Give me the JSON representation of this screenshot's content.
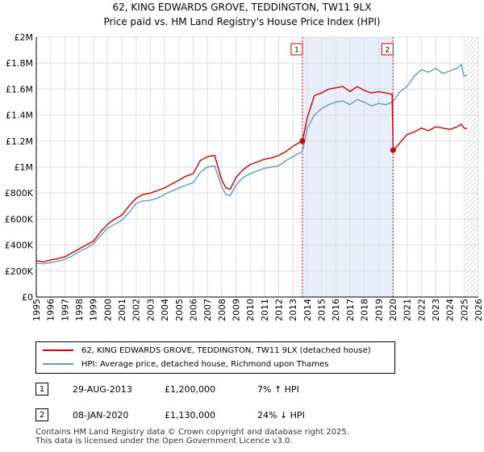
{
  "chart_data": {
    "type": "line",
    "title": "62, KING EDWARDS GROVE, TEDDINGTON, TW11 9LX",
    "subtitle": "Price paid vs. HM Land Registry's House Price Index (HPI)",
    "xlabel": "",
    "ylabel": "",
    "xlim": [
      1995,
      2026
    ],
    "ylim": [
      0,
      2000000
    ],
    "ytick_labels": [
      "£0",
      "£200K",
      "£400K",
      "£600K",
      "£800K",
      "£1M",
      "£1.2M",
      "£1.4M",
      "£1.6M",
      "£1.8M",
      "£2M"
    ],
    "xtick_labels": [
      "1995",
      "1996",
      "1997",
      "1998",
      "1999",
      "2000",
      "2001",
      "2002",
      "2003",
      "2004",
      "2005",
      "2006",
      "2007",
      "2008",
      "2009",
      "2010",
      "2011",
      "2012",
      "2013",
      "2014",
      "2015",
      "2016",
      "2017",
      "2018",
      "2019",
      "2020",
      "2021",
      "2022",
      "2023",
      "2024",
      "2025",
      "2026"
    ],
    "grid": true,
    "series": [
      {
        "name": "62, KING EDWARDS GROVE, TEDDINGTON, TW11 9LX (detached house)",
        "color": "#cc0000",
        "x": [
          1995.0,
          1995.5,
          1996.0,
          1996.5,
          1997.0,
          1997.5,
          1998.0,
          1998.5,
          1999.0,
          1999.5,
          2000.0,
          2000.5,
          2001.0,
          2001.5,
          2002.0,
          2002.5,
          2003.0,
          2003.5,
          2004.0,
          2004.5,
          2005.0,
          2005.5,
          2006.0,
          2006.5,
          2007.0,
          2007.5,
          2008.0,
          2008.3,
          2008.6,
          2009.0,
          2009.5,
          2010.0,
          2010.5,
          2011.0,
          2011.5,
          2012.0,
          2012.5,
          2013.0,
          2013.3,
          2013.66,
          2014.0,
          2014.5,
          2015.0,
          2015.5,
          2016.0,
          2016.5,
          2017.0,
          2017.5,
          2018.0,
          2018.5,
          2019.0,
          2019.5,
          2019.95,
          2020.02,
          2020.3,
          2020.6,
          2021.0,
          2021.5,
          2022.0,
          2022.5,
          2023.0,
          2023.5,
          2024.0,
          2024.5,
          2024.8,
          2025.0,
          2025.2
        ],
        "values": [
          280000,
          270000,
          285000,
          295000,
          310000,
          340000,
          370000,
          400000,
          430000,
          500000,
          560000,
          600000,
          630000,
          700000,
          760000,
          790000,
          800000,
          820000,
          840000,
          870000,
          900000,
          930000,
          950000,
          1050000,
          1080000,
          1090000,
          900000,
          840000,
          830000,
          920000,
          980000,
          1020000,
          1040000,
          1060000,
          1070000,
          1090000,
          1120000,
          1160000,
          1180000,
          1200000,
          1380000,
          1550000,
          1570000,
          1600000,
          1610000,
          1620000,
          1580000,
          1620000,
          1590000,
          1570000,
          1580000,
          1570000,
          1560000,
          1130000,
          1160000,
          1200000,
          1250000,
          1270000,
          1300000,
          1280000,
          1310000,
          1300000,
          1290000,
          1310000,
          1330000,
          1300000,
          1295000
        ]
      },
      {
        "name": "HPI: Average price, detached house, Richmond upon Thames",
        "color": "#6699cc",
        "x": [
          1995.0,
          1995.5,
          1996.0,
          1996.5,
          1997.0,
          1997.5,
          1998.0,
          1998.5,
          1999.0,
          1999.5,
          2000.0,
          2000.5,
          2001.0,
          2001.5,
          2002.0,
          2002.5,
          2003.0,
          2003.5,
          2004.0,
          2004.5,
          2005.0,
          2005.5,
          2006.0,
          2006.5,
          2007.0,
          2007.5,
          2008.0,
          2008.3,
          2008.6,
          2009.0,
          2009.5,
          2010.0,
          2010.5,
          2011.0,
          2011.5,
          2012.0,
          2012.5,
          2013.0,
          2013.3,
          2013.66,
          2014.0,
          2014.5,
          2015.0,
          2015.5,
          2016.0,
          2016.5,
          2017.0,
          2017.5,
          2018.0,
          2018.5,
          2019.0,
          2019.5,
          2020.0,
          2020.5,
          2021.0,
          2021.5,
          2022.0,
          2022.5,
          2023.0,
          2023.5,
          2024.0,
          2024.5,
          2024.8,
          2025.0,
          2025.2
        ],
        "values": [
          260000,
          255000,
          265000,
          275000,
          290000,
          315000,
          350000,
          375000,
          410000,
          470000,
          530000,
          560000,
          590000,
          650000,
          720000,
          740000,
          745000,
          760000,
          790000,
          815000,
          840000,
          860000,
          880000,
          960000,
          1000000,
          1010000,
          850000,
          790000,
          780000,
          860000,
          920000,
          950000,
          970000,
          990000,
          1000000,
          1010000,
          1050000,
          1080000,
          1100000,
          1120000,
          1300000,
          1400000,
          1450000,
          1480000,
          1500000,
          1510000,
          1480000,
          1520000,
          1500000,
          1470000,
          1490000,
          1480000,
          1500000,
          1580000,
          1620000,
          1700000,
          1750000,
          1730000,
          1760000,
          1720000,
          1740000,
          1760000,
          1790000,
          1700000,
          1710000
        ]
      }
    ],
    "annotations": [
      {
        "label": "1",
        "x": 2013.66,
        "y": 1200000,
        "date": "29-AUG-2013"
      },
      {
        "label": "2",
        "x": 2020.02,
        "y": 1130000,
        "date": "08-JAN-2020"
      }
    ],
    "shaded_span": [
      2013.66,
      2020.02
    ]
  },
  "legend": {
    "property_label": "62, KING EDWARDS GROVE, TEDDINGTON, TW11 9LX (detached house)",
    "hpi_label": "HPI: Average price, detached house, Richmond upon Thames"
  },
  "transactions": [
    {
      "num": "1",
      "date": "29-AUG-2013",
      "price": "£1,200,000",
      "hpi": "7% ↑ HPI"
    },
    {
      "num": "2",
      "date": "08-JAN-2020",
      "price": "£1,130,000",
      "hpi": "24% ↓ HPI"
    }
  ],
  "footer": {
    "line1": "Contains HM Land Registry data © Crown copyright and database right 2025.",
    "line2": "This data is licensed under the Open Government Licence v3.0."
  },
  "colors": {
    "property": "#cc0000",
    "hpi": "#6699cc",
    "shade": "#e8eefa",
    "grid": "#dddddd"
  }
}
